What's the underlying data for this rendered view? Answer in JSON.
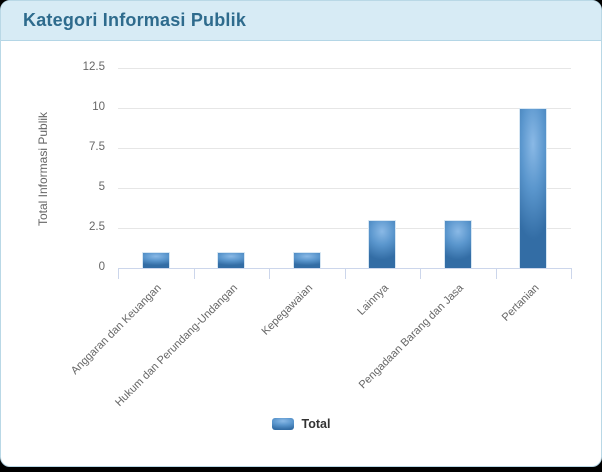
{
  "header": {
    "title": "Kategori Informasi Publik"
  },
  "chart_data": {
    "type": "bar",
    "title": "Kategori Informasi Publik",
    "categories": [
      "Anggaran dan Keuangan",
      "Hukum dan Perundang-Undangan",
      "Kepegawaian",
      "Lainnya",
      "Pengadaan Barang dan Jasa",
      "Pertanian"
    ],
    "series": [
      {
        "name": "Total",
        "values": [
          1,
          1,
          1,
          3,
          3,
          10
        ]
      }
    ],
    "xlabel": "",
    "ylabel": "Total Informasi Publik",
    "ylim": [
      0,
      12.5
    ],
    "yticks": [
      {
        "value": 0,
        "label": "0"
      },
      {
        "value": 2.5,
        "label": "2.5"
      },
      {
        "value": 5,
        "label": "5"
      },
      {
        "value": 7.5,
        "label": "7.5"
      },
      {
        "value": 10,
        "label": "10"
      },
      {
        "value": 12.5,
        "label": "12.5"
      }
    ],
    "grid": true,
    "legend_position": "bottom-center",
    "colors": {
      "bar_center": "#8ab9e6",
      "bar_mid": "#5a96cd",
      "bar_edge": "#336da5",
      "gridline": "#e6e6e6",
      "axis_line": "#ccd6eb",
      "axis_text": "#666666",
      "header_bg": "#d7ebf5",
      "header_text": "#2e6b8d",
      "legend_text": "#333333"
    }
  }
}
